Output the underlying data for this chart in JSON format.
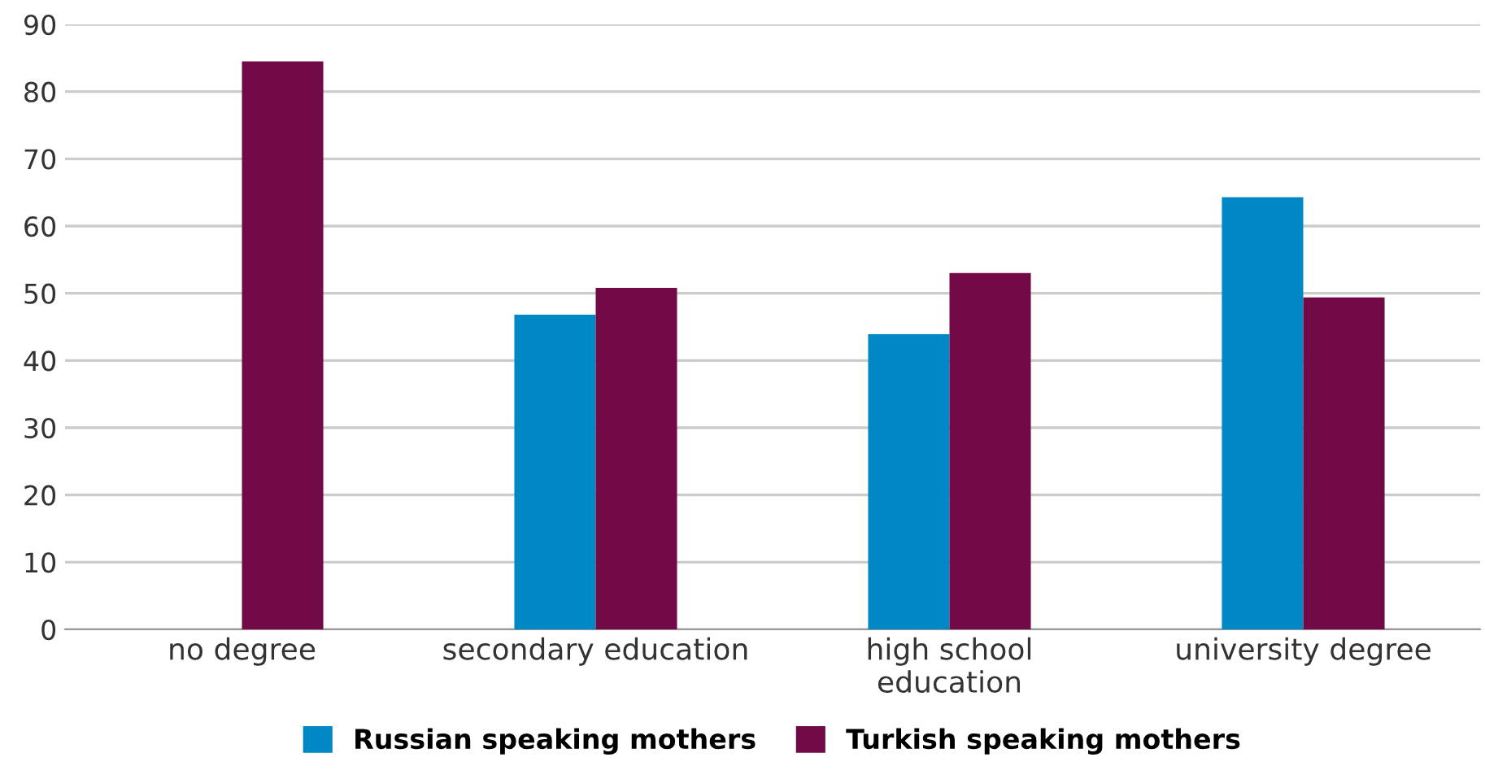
{
  "chart_data": {
    "type": "bar",
    "categories": [
      "no degree",
      "secondary education",
      "high school\neducation",
      "university degree"
    ],
    "series": [
      {
        "name": "Russian speaking mothers",
        "color": "#0088c6",
        "values": [
          null,
          46.8,
          43.9,
          64.3
        ]
      },
      {
        "name": "Turkish speaking mothers",
        "color": "#720a48",
        "values": [
          84.5,
          50.8,
          53.0,
          49.4
        ]
      }
    ],
    "ylim": [
      0,
      90
    ],
    "yticks": [
      0,
      10,
      20,
      30,
      40,
      50,
      60,
      70,
      80,
      90
    ],
    "grid": "y",
    "legend": "bottom"
  }
}
